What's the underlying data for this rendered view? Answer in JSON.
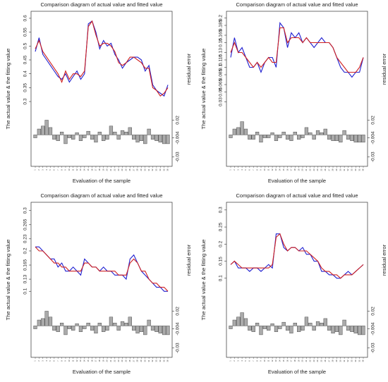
{
  "chart_data": [
    {
      "type": "line",
      "title": "Comparison diagram of actual value and fitted value",
      "ylabel": "The actual value & the fitting value",
      "xlabel": "Evaluation of the sample",
      "y2label": "residual error",
      "x": [
        1,
        2,
        3,
        4,
        5,
        6,
        7,
        8,
        9,
        10,
        11,
        12,
        13,
        14,
        15,
        16,
        17,
        18,
        19,
        20,
        21,
        22,
        23,
        24,
        25,
        26,
        27,
        28,
        29,
        30,
        31,
        32,
        33,
        34,
        35,
        36
      ],
      "ylim": [
        0.29,
        0.61
      ],
      "yticks": [
        0.3,
        0.35,
        0.4,
        0.45,
        0.5,
        0.55,
        0.6
      ],
      "series": [
        {
          "name": "actual",
          "color": "#1f1fd0",
          "values": [
            0.48,
            0.53,
            0.47,
            0.45,
            0.43,
            0.41,
            0.39,
            0.38,
            0.4,
            0.37,
            0.39,
            0.41,
            0.38,
            0.4,
            0.58,
            0.59,
            0.55,
            0.49,
            0.52,
            0.5,
            0.51,
            0.47,
            0.45,
            0.42,
            0.44,
            0.45,
            0.46,
            0.46,
            0.45,
            0.41,
            0.43,
            0.36,
            0.34,
            0.33,
            0.32,
            0.36
          ]
        },
        {
          "name": "fitted",
          "color": "#d02020",
          "values": [
            0.49,
            0.52,
            0.48,
            0.46,
            0.44,
            0.42,
            0.4,
            0.37,
            0.41,
            0.38,
            0.4,
            0.4,
            0.39,
            0.41,
            0.57,
            0.59,
            0.54,
            0.5,
            0.51,
            0.51,
            0.5,
            0.48,
            0.44,
            0.43,
            0.44,
            0.46,
            0.46,
            0.45,
            0.44,
            0.42,
            0.42,
            0.35,
            0.34,
            0.32,
            0.33,
            0.35
          ]
        }
      ],
      "residuals": {
        "color": "#aaaaaa",
        "values": [
          -0.004,
          0.008,
          0.012,
          0.02,
          0.01,
          -0.006,
          -0.008,
          0.004,
          -0.012,
          -0.004,
          -0.006,
          0.003,
          -0.008,
          -0.004,
          0.005,
          -0.006,
          -0.01,
          0.004,
          -0.008,
          -0.006,
          0.012,
          0.004,
          -0.006,
          0.006,
          0.004,
          0.01,
          -0.006,
          -0.01,
          -0.008,
          -0.012,
          0.008,
          -0.006,
          -0.008,
          -0.01,
          -0.012,
          -0.012
        ],
        "ylim": [
          -0.035,
          0.03
        ],
        "yticks": [
          0.02,
          -0.004,
          -0.03
        ]
      }
    },
    {
      "type": "line",
      "title": "Comparison diagram of actual value and fitted value",
      "ylabel": "The actual value & the fitting value",
      "xlabel": "Evaluation of the sample",
      "y2label": "residual error",
      "x": [
        1,
        2,
        3,
        4,
        5,
        6,
        7,
        8,
        9,
        10,
        11,
        12,
        13,
        14,
        15,
        16,
        17,
        18,
        19,
        20,
        21,
        22,
        23,
        24,
        25,
        26,
        27,
        28,
        29,
        30,
        31,
        32,
        33,
        34,
        35,
        36
      ],
      "ylim": [
        0.025,
        0.205
      ],
      "yticks": [
        0.03,
        0.05,
        0.065,
        0.085,
        0.1,
        0.115,
        0.13,
        0.15,
        0.165,
        0.185,
        0.2
      ],
      "series": [
        {
          "name": "actual",
          "color": "#1f1fd0",
          "values": [
            0.12,
            0.16,
            0.13,
            0.14,
            0.12,
            0.1,
            0.1,
            0.11,
            0.09,
            0.11,
            0.12,
            0.12,
            0.1,
            0.19,
            0.18,
            0.14,
            0.17,
            0.16,
            0.17,
            0.15,
            0.16,
            0.15,
            0.14,
            0.15,
            0.16,
            0.15,
            0.15,
            0.14,
            0.12,
            0.1,
            0.09,
            0.09,
            0.08,
            0.09,
            0.09,
            0.12
          ]
        },
        {
          "name": "fitted",
          "color": "#d02020",
          "values": [
            0.13,
            0.15,
            0.13,
            0.13,
            0.12,
            0.11,
            0.1,
            0.11,
            0.1,
            0.11,
            0.12,
            0.11,
            0.11,
            0.18,
            0.18,
            0.15,
            0.16,
            0.16,
            0.16,
            0.15,
            0.16,
            0.15,
            0.15,
            0.15,
            0.15,
            0.15,
            0.15,
            0.14,
            0.12,
            0.11,
            0.1,
            0.09,
            0.09,
            0.09,
            0.1,
            0.12
          ]
        }
      ],
      "residuals": {
        "color": "#aaaaaa",
        "values": [
          -0.004,
          0.008,
          0.01,
          0.018,
          0.008,
          -0.006,
          -0.006,
          0.004,
          -0.01,
          -0.004,
          -0.004,
          0.003,
          -0.008,
          -0.004,
          0.004,
          -0.006,
          -0.008,
          0.004,
          -0.006,
          -0.004,
          0.01,
          0.003,
          -0.006,
          0.006,
          0.003,
          0.008,
          -0.006,
          -0.008,
          -0.008,
          -0.01,
          0.006,
          -0.006,
          -0.008,
          -0.01,
          -0.01,
          -0.01
        ],
        "ylim": [
          -0.035,
          0.03
        ],
        "yticks": [
          0.02,
          -0.004,
          -0.03
        ]
      }
    },
    {
      "type": "line",
      "title": "Comparison diagram of actual value and fitted value",
      "ylabel": "The actual value & the fitting value",
      "xlabel": "Evaluation of the sample",
      "y2label": "residual error",
      "x": [
        1,
        2,
        3,
        4,
        5,
        6,
        7,
        8,
        9,
        10,
        11,
        12,
        13,
        14,
        15,
        16,
        17,
        18,
        19,
        20,
        21,
        22,
        23,
        24,
        25,
        26,
        27,
        28,
        29,
        30,
        31,
        32,
        33,
        34,
        35,
        36
      ],
      "ylim": [
        0.09,
        0.31
      ],
      "yticks": [
        0.1,
        0.13,
        0.165,
        0.2,
        0.23,
        0.265,
        0.3
      ],
      "series": [
        {
          "name": "actual",
          "color": "#1f1fd0",
          "values": [
            0.21,
            0.21,
            0.2,
            0.19,
            0.18,
            0.18,
            0.16,
            0.17,
            0.15,
            0.15,
            0.16,
            0.15,
            0.14,
            0.18,
            0.17,
            0.16,
            0.16,
            0.15,
            0.16,
            0.15,
            0.15,
            0.14,
            0.14,
            0.14,
            0.13,
            0.18,
            0.19,
            0.17,
            0.15,
            0.14,
            0.13,
            0.12,
            0.11,
            0.11,
            0.1,
            0.1
          ]
        },
        {
          "name": "fitted",
          "color": "#d02020",
          "values": [
            0.21,
            0.2,
            0.2,
            0.19,
            0.18,
            0.17,
            0.17,
            0.16,
            0.16,
            0.15,
            0.15,
            0.15,
            0.15,
            0.17,
            0.17,
            0.16,
            0.16,
            0.15,
            0.15,
            0.15,
            0.15,
            0.15,
            0.14,
            0.14,
            0.14,
            0.17,
            0.18,
            0.17,
            0.15,
            0.15,
            0.13,
            0.12,
            0.12,
            0.11,
            0.11,
            0.1
          ]
        }
      ],
      "residuals": {
        "color": "#aaaaaa",
        "values": [
          -0.004,
          0.008,
          0.01,
          0.02,
          0.012,
          -0.006,
          -0.008,
          0.004,
          -0.012,
          -0.004,
          -0.006,
          0.003,
          -0.008,
          -0.004,
          0.004,
          -0.006,
          -0.01,
          0.004,
          -0.008,
          -0.006,
          0.012,
          0.004,
          -0.006,
          0.006,
          0.004,
          0.012,
          -0.006,
          -0.01,
          -0.008,
          -0.012,
          0.008,
          -0.006,
          -0.008,
          -0.01,
          -0.012,
          -0.012
        ],
        "ylim": [
          -0.035,
          0.03
        ],
        "yticks": [
          0.02,
          -0.004,
          -0.03
        ]
      }
    },
    {
      "type": "line",
      "title": "Comparison diagram of actual value and fitted value",
      "ylabel": "The actual value & the fitting value",
      "xlabel": "Evaluation of the sample",
      "y2label": "residual error",
      "x": [
        1,
        2,
        3,
        4,
        5,
        6,
        7,
        8,
        9,
        10,
        11,
        12,
        13,
        14,
        15,
        16,
        17,
        18,
        19,
        20,
        21,
        22,
        23,
        24,
        25,
        26,
        27,
        28,
        29,
        30,
        31,
        32,
        33,
        34,
        35,
        36
      ],
      "ylim": [
        0.05,
        0.31
      ],
      "yticks": [
        0.1,
        0.15,
        0.2,
        0.25,
        0.3
      ],
      "series": [
        {
          "name": "actual",
          "color": "#1f1fd0",
          "values": [
            0.14,
            0.15,
            0.13,
            0.13,
            0.13,
            0.12,
            0.13,
            0.13,
            0.12,
            0.13,
            0.14,
            0.13,
            0.23,
            0.23,
            0.19,
            0.18,
            0.19,
            0.19,
            0.18,
            0.19,
            0.17,
            0.17,
            0.15,
            0.15,
            0.12,
            0.12,
            0.11,
            0.11,
            0.1,
            0.1,
            0.11,
            0.12,
            0.11,
            0.12,
            0.13,
            0.14
          ]
        },
        {
          "name": "fitted",
          "color": "#d02020",
          "values": [
            0.14,
            0.15,
            0.14,
            0.13,
            0.13,
            0.13,
            0.13,
            0.13,
            0.13,
            0.13,
            0.13,
            0.14,
            0.22,
            0.23,
            0.2,
            0.18,
            0.19,
            0.19,
            0.18,
            0.18,
            0.18,
            0.17,
            0.16,
            0.15,
            0.13,
            0.12,
            0.12,
            0.11,
            0.11,
            0.1,
            0.11,
            0.11,
            0.11,
            0.12,
            0.13,
            0.14
          ]
        }
      ],
      "residuals": {
        "color": "#aaaaaa",
        "values": [
          -0.004,
          0.008,
          0.012,
          0.018,
          0.01,
          -0.006,
          -0.008,
          0.004,
          -0.012,
          -0.004,
          -0.006,
          0.003,
          -0.008,
          -0.004,
          0.005,
          -0.006,
          -0.01,
          0.004,
          -0.008,
          -0.006,
          0.012,
          0.004,
          -0.006,
          0.006,
          0.004,
          0.01,
          -0.006,
          -0.01,
          -0.008,
          -0.012,
          0.008,
          -0.006,
          -0.008,
          -0.01,
          -0.012,
          -0.012
        ],
        "ylim": [
          -0.035,
          0.03
        ],
        "yticks": [
          0.02,
          -0.004,
          -0.03
        ]
      }
    }
  ]
}
